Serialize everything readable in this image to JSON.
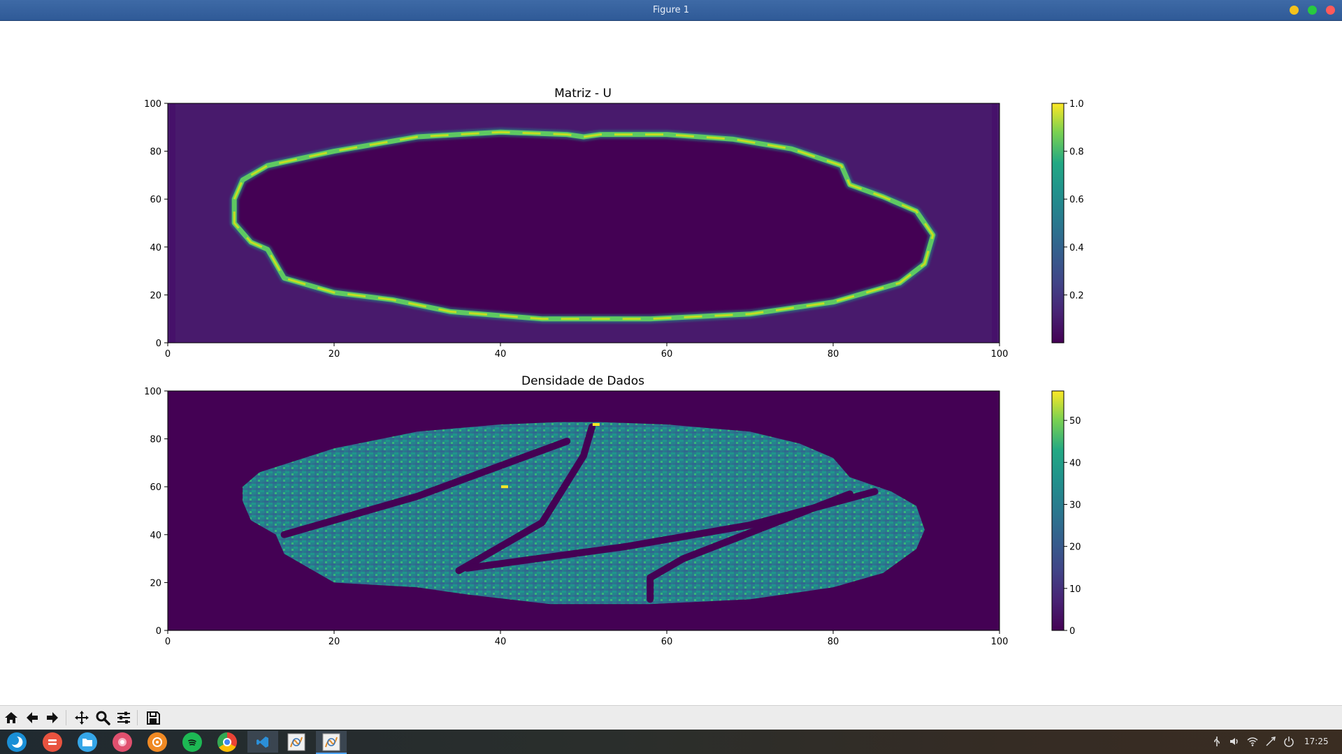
{
  "window": {
    "title": "Figure 1"
  },
  "chart_data": [
    {
      "type": "heatmap",
      "title": "Matriz - U",
      "xlim": [
        0,
        100
      ],
      "ylim": [
        0,
        100
      ],
      "xticks": [
        "0",
        "20",
        "40",
        "60",
        "80",
        "100"
      ],
      "yticks": [
        "0",
        "20",
        "40",
        "60",
        "80",
        "100"
      ],
      "colormap": "viridis",
      "colorbar": {
        "range": [
          0,
          1.0
        ],
        "ticks": [
          "0.2",
          "0.4",
          "0.6",
          "0.8",
          "1.0"
        ]
      },
      "background_value": 0.05,
      "ring": {
        "value": 0.85,
        "path": [
          [
            8,
            60
          ],
          [
            9,
            68
          ],
          [
            12,
            74
          ],
          [
            20,
            80
          ],
          [
            30,
            86
          ],
          [
            40,
            88
          ],
          [
            48,
            87
          ],
          [
            50,
            86
          ],
          [
            52,
            87
          ],
          [
            60,
            87
          ],
          [
            68,
            85
          ],
          [
            75,
            81
          ],
          [
            81,
            74
          ],
          [
            82,
            66
          ],
          [
            86,
            61
          ],
          [
            90,
            55
          ],
          [
            92,
            45
          ],
          [
            91,
            33
          ],
          [
            88,
            25
          ],
          [
            80,
            17
          ],
          [
            70,
            12
          ],
          [
            58,
            10
          ],
          [
            45,
            10
          ],
          [
            34,
            13
          ],
          [
            27,
            18
          ],
          [
            20,
            21
          ],
          [
            14,
            27
          ],
          [
            12,
            39
          ],
          [
            10,
            42
          ],
          [
            8,
            50
          ],
          [
            8,
            60
          ]
        ]
      }
    },
    {
      "type": "heatmap",
      "title": "Densidade de Dados",
      "xlim": [
        0,
        100
      ],
      "ylim": [
        0,
        100
      ],
      "xticks": [
        "0",
        "20",
        "40",
        "60",
        "80",
        "100"
      ],
      "yticks": [
        "0",
        "20",
        "40",
        "60",
        "80",
        "100"
      ],
      "colormap": "viridis",
      "colorbar": {
        "range": [
          0,
          57
        ],
        "ticks": [
          "0",
          "10",
          "20",
          "30",
          "40",
          "50"
        ]
      },
      "blob": {
        "mean_value": 28,
        "path": [
          [
            9,
            60
          ],
          [
            11,
            66
          ],
          [
            20,
            76
          ],
          [
            30,
            83
          ],
          [
            40,
            86
          ],
          [
            47,
            87
          ],
          [
            52,
            87
          ],
          [
            60,
            86
          ],
          [
            70,
            83
          ],
          [
            76,
            78
          ],
          [
            80,
            72
          ],
          [
            82,
            64
          ],
          [
            87,
            58
          ],
          [
            90,
            52
          ],
          [
            91,
            42
          ],
          [
            90,
            34
          ],
          [
            86,
            24
          ],
          [
            80,
            18
          ],
          [
            70,
            13
          ],
          [
            58,
            11
          ],
          [
            46,
            11
          ],
          [
            36,
            15
          ],
          [
            30,
            18
          ],
          [
            20,
            20
          ],
          [
            14,
            32
          ],
          [
            13,
            40
          ],
          [
            10,
            46
          ],
          [
            9,
            54
          ],
          [
            9,
            60
          ]
        ],
        "gaps": [
          [
            [
              14,
              40
            ],
            [
              30,
              56
            ],
            [
              48,
              79
            ]
          ],
          [
            [
              35,
              25
            ],
            [
              45,
              45
            ],
            [
              50,
              73
            ],
            [
              51,
              85
            ]
          ],
          [
            [
              36,
              26
            ],
            [
              55,
              35
            ],
            [
              70,
              44
            ],
            [
              85,
              58
            ]
          ],
          [
            [
              58,
              13
            ],
            [
              58,
              22
            ],
            [
              62,
              30
            ],
            [
              82,
              57
            ]
          ]
        ]
      }
    }
  ],
  "toolbar": {
    "buttons": [
      "home-icon",
      "back-icon",
      "forward-icon",
      "pan-icon",
      "zoom-icon",
      "configure-icon",
      "save-icon"
    ]
  },
  "taskbar": {
    "apps": [
      "launcher-icon",
      "settings-app-icon",
      "files-app-icon",
      "store-app-icon",
      "media-app-icon",
      "spotify-app-icon",
      "chrome-app-icon"
    ],
    "windows": [
      "vscode-window-icon",
      "python-figure-window-icon",
      "python-figure-window-icon-2"
    ],
    "tray": [
      "usb-icon",
      "volume-icon",
      "wifi-icon",
      "network-icon",
      "power-icon"
    ],
    "clock": "17:25"
  },
  "colors": {
    "titlebar": "#3e6aa6",
    "toolbar": "#ececec",
    "viridis_low": "#440154",
    "viridis_high": "#fde725"
  }
}
